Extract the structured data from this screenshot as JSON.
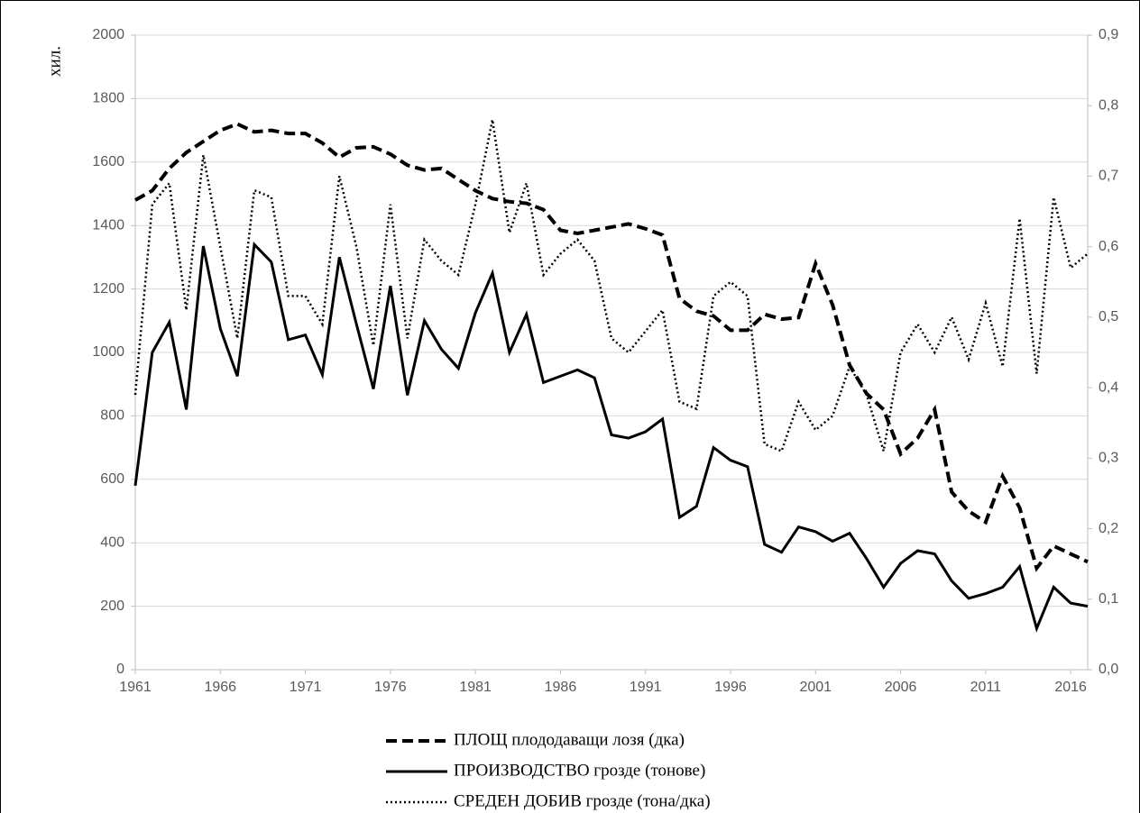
{
  "chart_data": {
    "type": "line",
    "y_label": "хил.",
    "x": [
      1961,
      1962,
      1963,
      1964,
      1965,
      1966,
      1967,
      1968,
      1969,
      1970,
      1971,
      1972,
      1973,
      1974,
      1975,
      1976,
      1977,
      1978,
      1979,
      1980,
      1981,
      1982,
      1983,
      1984,
      1985,
      1986,
      1987,
      1988,
      1989,
      1990,
      1991,
      1992,
      1993,
      1994,
      1995,
      1996,
      1997,
      1998,
      1999,
      2000,
      2001,
      2002,
      2003,
      2004,
      2005,
      2006,
      2007,
      2008,
      2009,
      2010,
      2011,
      2012,
      2013,
      2014,
      2015,
      2016,
      2017
    ],
    "xlim": [
      1961,
      2017
    ],
    "xticks": [
      1961,
      1966,
      1971,
      1976,
      1981,
      1986,
      1991,
      1996,
      2001,
      2006,
      2011,
      2016
    ],
    "ylim": [
      0,
      2000
    ],
    "yticks": [
      0,
      200,
      400,
      600,
      800,
      1000,
      1200,
      1400,
      1600,
      1800,
      2000
    ],
    "y2lim": [
      0,
      0.9
    ],
    "y2ticks": [
      {
        "value": 0,
        "label": "0,0"
      },
      {
        "value": 0.1,
        "label": "0,1"
      },
      {
        "value": 0.2,
        "label": "0,2"
      },
      {
        "value": 0.3,
        "label": "0,3"
      },
      {
        "value": 0.4,
        "label": "0,4"
      },
      {
        "value": 0.5,
        "label": "0,5"
      },
      {
        "value": 0.6,
        "label": "0,6"
      },
      {
        "value": 0.7,
        "label": "0,7"
      },
      {
        "value": 0.8,
        "label": "0,8"
      },
      {
        "value": 0.9,
        "label": "0,9"
      }
    ],
    "grid": true,
    "legend": "bottom",
    "series": [
      {
        "name": "ПЛОЩ плододаващи лозя (дка)",
        "color": "#000000",
        "style": "dashed",
        "values": [
          1480,
          1510,
          1580,
          1630,
          1665,
          1700,
          1720,
          1695,
          1700,
          1690,
          1690,
          1660,
          1615,
          1645,
          1648,
          1625,
          1590,
          1575,
          1580,
          1545,
          1510,
          1485,
          1475,
          1470,
          1450,
          1385,
          1375,
          1385,
          1395,
          1405,
          1390,
          1370,
          1170,
          1130,
          1115,
          1070,
          1070,
          1120,
          1105,
          1110,
          1280,
          1150,
          960,
          870,
          820,
          680,
          730,
          820,
          560,
          500,
          465,
          610,
          510,
          320,
          390,
          365,
          340
        ]
      },
      {
        "name": "ПРОИЗВОДСТВО грозде (тонове)",
        "color": "#000000",
        "style": "solid",
        "values": [
          580,
          1000,
          1095,
          820,
          1335,
          1075,
          925,
          1340,
          1285,
          1040,
          1055,
          930,
          1300,
          1090,
          885,
          1210,
          865,
          1100,
          1010,
          950,
          1125,
          1250,
          1000,
          1120,
          905,
          925,
          945,
          920,
          740,
          730,
          750,
          790,
          480,
          515,
          700,
          660,
          640,
          395,
          370,
          450,
          435,
          405,
          430,
          350,
          260,
          335,
          375,
          365,
          280,
          225,
          240,
          260,
          325,
          130,
          260,
          210,
          200
        ]
      },
      {
        "name": "СРЕДЕН ДОБИВ грозде (тона/дка)",
        "color": "#000000",
        "style": "dotted",
        "axis": "y2",
        "values": [
          0.39,
          0.66,
          0.69,
          0.51,
          0.73,
          0.6,
          0.47,
          0.68,
          0.67,
          0.53,
          0.53,
          0.49,
          0.7,
          0.6,
          0.46,
          0.66,
          0.47,
          0.61,
          0.58,
          0.56,
          0.66,
          0.78,
          0.62,
          0.69,
          0.56,
          0.59,
          0.61,
          0.58,
          0.47,
          0.45,
          0.48,
          0.51,
          0.38,
          0.37,
          0.53,
          0.55,
          0.53,
          0.32,
          0.31,
          0.38,
          0.34,
          0.36,
          0.43,
          0.39,
          0.31,
          0.45,
          0.49,
          0.45,
          0.5,
          0.44,
          0.52,
          0.43,
          0.64,
          0.42,
          0.67,
          0.57,
          0.59
        ]
      }
    ]
  }
}
